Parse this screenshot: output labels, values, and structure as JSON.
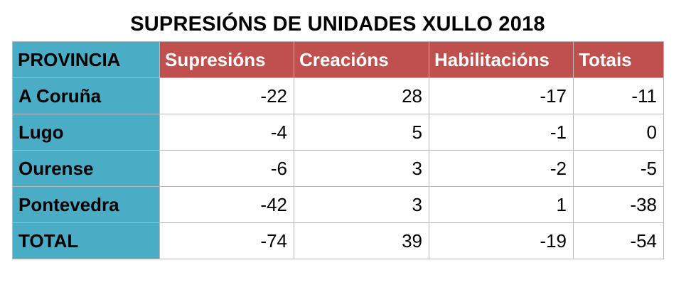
{
  "title": "SUPRESIÓNS DE UNIDADES XULLO 2018",
  "headers": [
    "PROVINCIA",
    "Supresións",
    "Creacións",
    "Habilitacións",
    "Totais"
  ],
  "rows": [
    {
      "provincia": "A Coruña",
      "supresions": "-22",
      "creacions": "28",
      "habilitacions": "-17",
      "totais": "-11"
    },
    {
      "provincia": "Lugo",
      "supresions": "-4",
      "creacions": "5",
      "habilitacions": "-1",
      "totais": "0"
    },
    {
      "provincia": "Ourense",
      "supresions": "-6",
      "creacions": "3",
      "habilitacions": "-2",
      "totais": "-5"
    },
    {
      "provincia": "Pontevedra",
      "supresions": "-42",
      "creacions": "3",
      "habilitacions": "1",
      "totais": "-38"
    },
    {
      "provincia": "TOTAL",
      "supresions": "-74",
      "creacions": "39",
      "habilitacions": "-19",
      "totais": "-54"
    }
  ],
  "colors": {
    "header_red": "#c0504d",
    "province_blue": "#4bacc6",
    "border": "#b8b8b8"
  }
}
